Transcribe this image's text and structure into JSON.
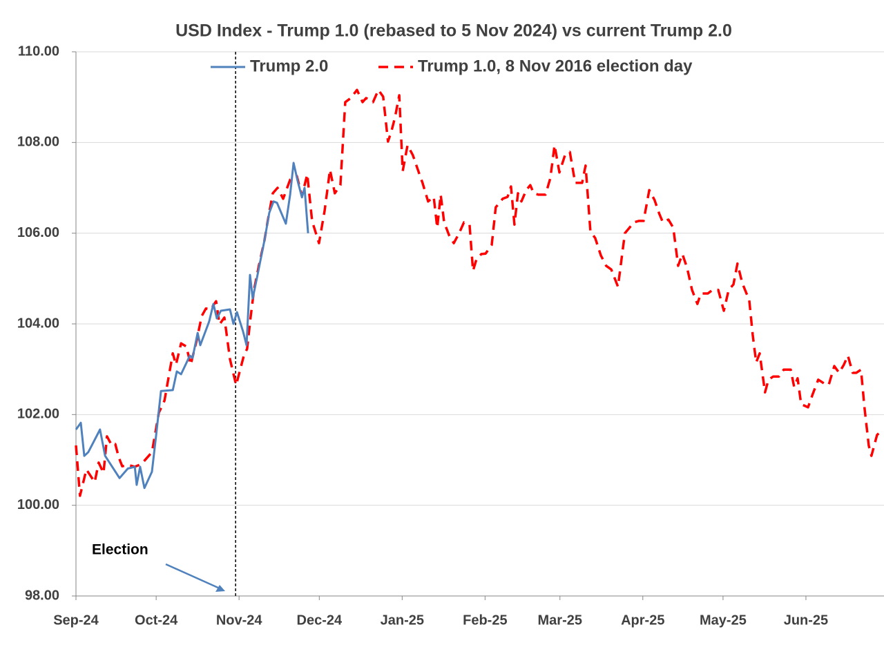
{
  "chart_data": {
    "type": "line",
    "title": "USD Index - Trump 1.0  (rebased to 5 Nov 2024) vs current Trump 2.0",
    "xlim": [
      0,
      302.2
    ],
    "xticks": [
      {
        "value": 0,
        "label": "Sep-24"
      },
      {
        "value": 30,
        "label": "Oct-24"
      },
      {
        "value": 61,
        "label": "Nov-24"
      },
      {
        "value": 91,
        "label": "Dec-24"
      },
      {
        "value": 122,
        "label": "Jan-25"
      },
      {
        "value": 153,
        "label": "Feb-25"
      },
      {
        "value": 181,
        "label": "Mar-25"
      },
      {
        "value": 212,
        "label": "Apr-25"
      },
      {
        "value": 242,
        "label": "May-25"
      },
      {
        "value": 273,
        "label": "Jun-25"
      }
    ],
    "ylim": [
      98,
      110
    ],
    "yticks": [
      {
        "value": 98,
        "label": "98.00"
      },
      {
        "value": 100,
        "label": "100.00"
      },
      {
        "value": 102,
        "label": "102.00"
      },
      {
        "value": 104,
        "label": "104.00"
      },
      {
        "value": 106,
        "label": "106.00"
      },
      {
        "value": 108,
        "label": "108.00"
      },
      {
        "value": 110,
        "label": "110.00"
      }
    ],
    "grid": true,
    "legend": "top",
    "annotation": {
      "text": "Election",
      "x": 59.7
    },
    "series": [
      {
        "name": "Trump 2.0",
        "color": "#4f81bd",
        "dash": false,
        "x": [
          0,
          1.8,
          3.1,
          4.6,
          9.0,
          10.9,
          14.2,
          16.3,
          19.4,
          22.0,
          22.7,
          24.0,
          25.6,
          28.4,
          30.0,
          31.8,
          36.2,
          37.7,
          39.3,
          42.6,
          43.6,
          45.5,
          46.5,
          49.8,
          51.4,
          52.7,
          54.2,
          57.6,
          58.9,
          60.2,
          62.5,
          63.8,
          65.1,
          66.1,
          67.9,
          70.5,
          72.3,
          73.9,
          75.2,
          78.5,
          80.1,
          81.4,
          82.9,
          84.5,
          85.5,
          86.8
        ],
        "values": [
          101.67,
          101.82,
          101.09,
          101.17,
          101.67,
          101.09,
          100.79,
          100.6,
          100.81,
          100.85,
          100.45,
          100.85,
          100.38,
          100.74,
          101.55,
          102.52,
          102.54,
          102.95,
          102.89,
          103.3,
          103.25,
          103.8,
          103.53,
          104.05,
          104.44,
          104.12,
          104.29,
          104.32,
          104.0,
          104.26,
          103.83,
          103.53,
          105.08,
          104.56,
          105.08,
          105.84,
          106.45,
          106.7,
          106.67,
          106.21,
          106.85,
          107.55,
          107.15,
          106.79,
          107.0,
          106.0
        ]
      },
      {
        "name": "Trump 1.0, 8 Nov 2016 election day",
        "color": "#ff0000",
        "dash": true,
        "x": [
          0,
          1.5,
          3.9,
          7.0,
          8.5,
          10.3,
          11.6,
          13.4,
          14.7,
          16.0,
          17.3,
          19.4,
          22.0,
          24.5,
          28.4,
          31.0,
          33.1,
          36.2,
          37.4,
          39.3,
          41.3,
          42.9,
          45.2,
          47.0,
          48.6,
          50.4,
          52.4,
          53.7,
          55.5,
          57.6,
          59.9,
          62.8,
          64.0,
          65.3,
          66.6,
          68.4,
          70.5,
          71.8,
          73.6,
          75.4,
          77.5,
          80.1,
          82.6,
          84.5,
          86.5,
          88.3,
          90.9,
          93.0,
          95.0,
          96.8,
          98.9,
          100.7,
          102.8,
          105.1,
          107.2,
          108.5,
          111.1,
          113.1,
          114.9,
          116.7,
          118.0,
          119.3,
          120.9,
          122.2,
          124.0,
          126.0,
          127.8,
          129.6,
          131.7,
          133.8,
          135.1,
          136.4,
          137.7,
          139.5,
          141.3,
          143.3,
          145.1,
          147.2,
          148.5,
          149.8,
          151.6,
          153.2,
          155.5,
          157.0,
          159.6,
          161.4,
          162.7,
          164.0,
          165.3,
          166.6,
          168.4,
          169.9,
          171.2,
          173.0,
          175.6,
          177.4,
          179.0,
          180.8,
          182.9,
          184.7,
          186.7,
          189.3,
          190.6,
          192.4,
          194.2,
          196.3,
          198.3,
          200.2,
          202.7,
          205.3,
          208.7,
          210.5,
          212.3,
          214.4,
          216.4,
          218.2,
          219.5,
          221.6,
          223.4,
          225.2,
          226.8,
          228.6,
          230.4,
          232.4,
          233.7,
          236.3,
          238.1,
          240.2,
          242.3,
          244.1,
          245.9,
          247.4,
          249.2,
          251.8,
          253.1,
          254.4,
          255.7,
          257.7,
          259.0,
          260.8,
          262.9,
          264.7,
          267.3,
          268.6,
          269.9,
          271.2,
          273.8,
          275.6,
          277.6,
          279.7,
          281.5,
          283.6,
          285.4,
          287.2,
          288.7,
          290.5,
          291.8,
          293.6,
          294.9,
          296.5,
          297.5,
          299.6,
          301.7
        ],
        "values": [
          101.32,
          100.21,
          100.79,
          100.51,
          100.94,
          100.71,
          101.52,
          101.32,
          101.35,
          101.06,
          100.86,
          100.89,
          100.85,
          100.91,
          101.17,
          102.04,
          102.31,
          103.35,
          103.1,
          103.57,
          103.5,
          103.1,
          103.65,
          104.17,
          104.34,
          104.32,
          104.5,
          103.99,
          104.14,
          103.22,
          102.65,
          103.3,
          103.45,
          104.14,
          104.75,
          105.28,
          105.84,
          106.3,
          106.88,
          107.0,
          106.76,
          107.18,
          107.26,
          106.82,
          107.3,
          106.27,
          105.78,
          106.5,
          107.4,
          106.88,
          107.06,
          108.89,
          108.98,
          109.16,
          108.89,
          108.98,
          108.89,
          109.16,
          109.01,
          108.02,
          108.25,
          108.55,
          109.04,
          107.37,
          107.94,
          107.72,
          107.41,
          107.11,
          106.7,
          106.8,
          106.12,
          106.85,
          106.24,
          105.96,
          105.78,
          106.0,
          106.24,
          106.19,
          105.17,
          105.43,
          105.54,
          105.55,
          105.74,
          106.57,
          106.76,
          106.8,
          107.03,
          106.19,
          106.88,
          106.7,
          106.95,
          107.06,
          106.88,
          106.85,
          106.85,
          107.21,
          107.94,
          107.34,
          107.72,
          107.79,
          107.11,
          107.11,
          107.49,
          106.04,
          105.89,
          105.51,
          105.28,
          105.2,
          104.82,
          106.0,
          106.24,
          106.27,
          106.27,
          106.95,
          106.73,
          106.42,
          106.24,
          106.3,
          106.12,
          105.28,
          105.54,
          105.23,
          104.75,
          104.44,
          104.67,
          104.67,
          104.75,
          104.75,
          104.29,
          104.75,
          104.87,
          105.33,
          104.9,
          104.52,
          103.76,
          103.15,
          103.35,
          102.49,
          102.77,
          102.84,
          102.84,
          102.99,
          102.99,
          102.61,
          102.8,
          102.23,
          102.16,
          102.46,
          102.77,
          102.69,
          102.65,
          103.07,
          102.92,
          103.1,
          103.3,
          102.92,
          102.92,
          102.99,
          102.16,
          101.32,
          101.09,
          101.55,
          101.67
        ]
      }
    ]
  }
}
